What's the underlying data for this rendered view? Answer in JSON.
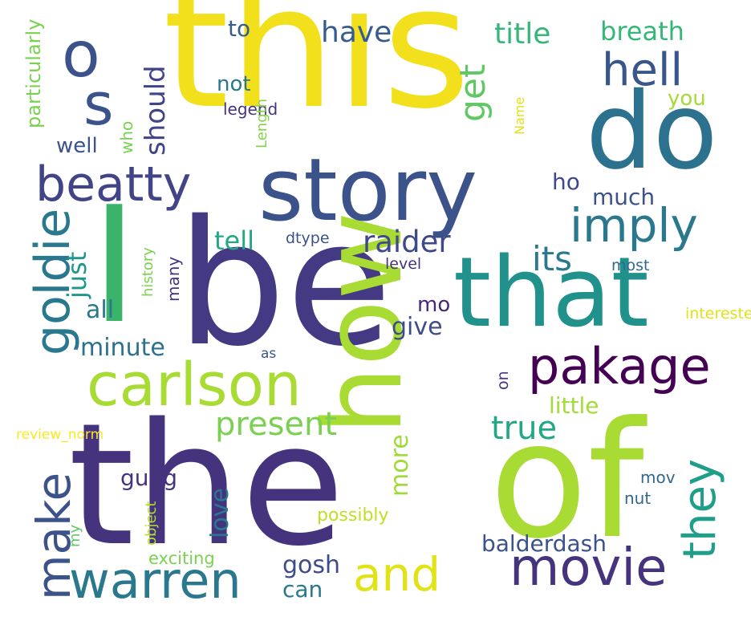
{
  "words": [
    {
      "text": "this",
      "color": "#f2e01c",
      "rotated": false
    },
    {
      "text": "I",
      "color": "#3bb36b",
      "rotated": false
    },
    {
      "text": "be",
      "color": "#443a83",
      "rotated": false
    },
    {
      "text": "the",
      "color": "#46337e",
      "rotated": false
    },
    {
      "text": "of",
      "color": "#a8db34",
      "rotated": false
    },
    {
      "text": "how",
      "color": "#a8db34",
      "rotated": true
    },
    {
      "text": "that",
      "color": "#21918c",
      "rotated": false
    },
    {
      "text": "do",
      "color": "#2c728e",
      "rotated": false
    },
    {
      "text": "story",
      "color": "#3b528b",
      "rotated": false
    },
    {
      "text": "carlson",
      "color": "#a8db34",
      "rotated": false
    },
    {
      "text": "movie",
      "color": "#46337e",
      "rotated": false
    },
    {
      "text": "warren",
      "color": "#2a788e",
      "rotated": false
    },
    {
      "text": "beatty",
      "color": "#414487",
      "rotated": false
    },
    {
      "text": "goldie",
      "color": "#2a788e",
      "rotated": true
    },
    {
      "text": "pakage",
      "color": "#440154",
      "rotated": false
    },
    {
      "text": "and",
      "color": "#dfe318",
      "rotated": false
    },
    {
      "text": "make",
      "color": "#3b528b",
      "rotated": true
    },
    {
      "text": "they",
      "color": "#1f9e89",
      "rotated": true
    },
    {
      "text": "imply",
      "color": "#2a788e",
      "rotated": false
    },
    {
      "text": "hell",
      "color": "#39568c",
      "rotated": false
    },
    {
      "text": "o",
      "color": "#3b528b",
      "rotated": false
    },
    {
      "text": "s",
      "color": "#3b528b",
      "rotated": false
    },
    {
      "text": "get",
      "color": "#5ec962",
      "rotated": true
    },
    {
      "text": "present",
      "color": "#7ad151",
      "rotated": false
    },
    {
      "text": "true",
      "color": "#22a884",
      "rotated": false
    },
    {
      "text": "its",
      "color": "#2a788e",
      "rotated": false
    },
    {
      "text": "raider",
      "color": "#3e4989",
      "rotated": false
    },
    {
      "text": "have",
      "color": "#365c8d",
      "rotated": false
    },
    {
      "text": "title",
      "color": "#35b779",
      "rotated": false
    },
    {
      "text": "breath",
      "color": "#35b779",
      "rotated": false
    },
    {
      "text": "should",
      "color": "#414487",
      "rotated": true
    },
    {
      "text": "just",
      "color": "#1f988b",
      "rotated": true
    },
    {
      "text": "minute",
      "color": "#2c728e",
      "rotated": false
    },
    {
      "text": "all",
      "color": "#2a788e",
      "rotated": false
    },
    {
      "text": "tell",
      "color": "#22a884",
      "rotated": false
    },
    {
      "text": "give",
      "color": "#3e4c8a",
      "rotated": false
    },
    {
      "text": "mo",
      "color": "#482878",
      "rotated": false
    },
    {
      "text": "more",
      "color": "#a0da39",
      "rotated": true
    },
    {
      "text": "little",
      "color": "#a5db36",
      "rotated": false
    },
    {
      "text": "love",
      "color": "#2a788e",
      "rotated": true
    },
    {
      "text": "gosh",
      "color": "#3e4c8a",
      "rotated": false
    },
    {
      "text": "can",
      "color": "#2a788e",
      "rotated": false
    },
    {
      "text": "balderdash",
      "color": "#3b528b",
      "rotated": false
    },
    {
      "text": "ho",
      "color": "#3e4989",
      "rotated": false
    },
    {
      "text": "much",
      "color": "#3b528b",
      "rotated": false
    },
    {
      "text": "you",
      "color": "#a5db36",
      "rotated": false
    },
    {
      "text": "not",
      "color": "#2a788e",
      "rotated": false
    },
    {
      "text": "to",
      "color": "#365c8d",
      "rotated": false
    },
    {
      "text": "well",
      "color": "#46337e",
      "rotated": false
    },
    {
      "text": "gung",
      "color": "#3b528b",
      "rotated": false
    },
    {
      "text": "legend",
      "color": "#7ad151",
      "rotated": true
    },
    {
      "text": "particularly",
      "color": "#7ad151",
      "rotated": true
    },
    {
      "text": "who",
      "color": "#84d44b",
      "rotated": true
    },
    {
      "text": "Length",
      "color": "#3b528b",
      "rotated": false
    },
    {
      "text": "dtype",
      "color": "#7ad151",
      "rotated": true
    },
    {
      "text": "history",
      "color": "#46337e",
      "rotated": true
    },
    {
      "text": "many",
      "color": "#46337e",
      "rotated": false
    },
    {
      "text": "level",
      "color": "#31688e",
      "rotated": false
    },
    {
      "text": "most",
      "color": "#dfe318",
      "rotated": false
    },
    {
      "text": "intereste",
      "color": "#46337e",
      "rotated": true
    },
    {
      "text": "on",
      "color": "#3b528b",
      "rotated": false
    },
    {
      "text": "as",
      "color": "#dfe318",
      "rotated": true
    },
    {
      "text": "Name",
      "color": "#fde725",
      "rotated": false
    },
    {
      "text": "review_norm",
      "color": "#b5de2b",
      "rotated": true
    },
    {
      "text": "object",
      "color": "#5ec962",
      "rotated": true
    },
    {
      "text": "my",
      "color": "#46337e",
      "rotated": false
    },
    {
      "text": "possibly",
      "color": "#c2df23",
      "rotated": false
    },
    {
      "text": "exciting",
      "color": "#7ad151",
      "rotated": false
    },
    {
      "text": "nut",
      "color": "#31688e",
      "rotated": false
    },
    {
      "text": "mov",
      "color": "#31688e",
      "rotated": false
    }
  ]
}
